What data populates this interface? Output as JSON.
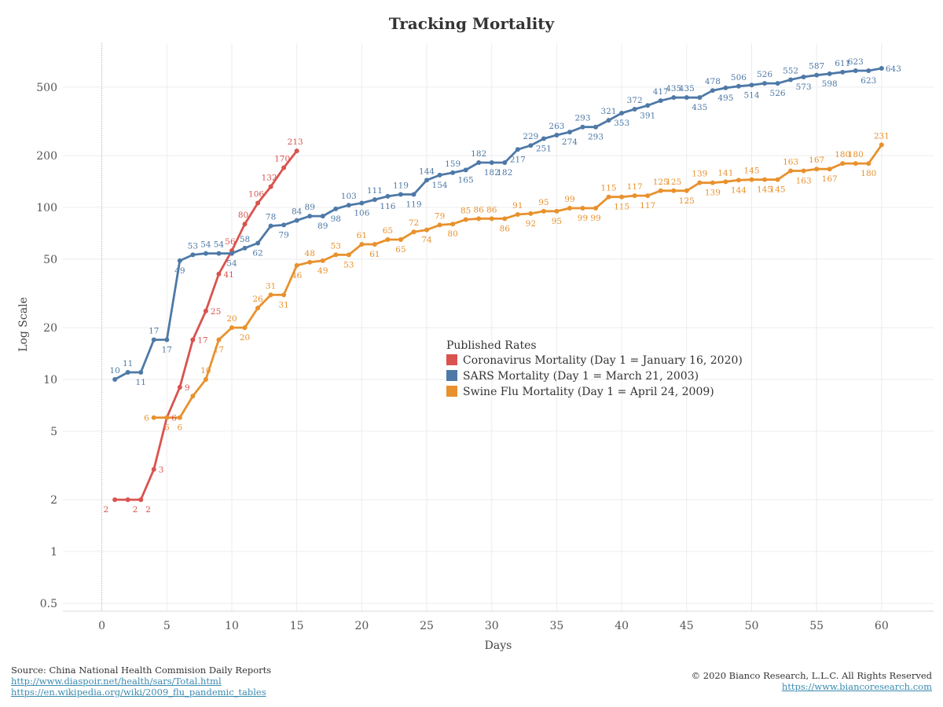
{
  "chart_data": {
    "type": "line",
    "title": "Tracking Mortality",
    "xlabel": "Days",
    "ylabel": "Log Scale",
    "y_scale": "log",
    "xlim": [
      -3,
      64
    ],
    "ylim": [
      0.45,
      900
    ],
    "x_ticks": [
      0,
      5,
      10,
      15,
      20,
      25,
      30,
      35,
      40,
      45,
      50,
      55,
      60
    ],
    "y_ticks": [
      0.5,
      1,
      2,
      5,
      10,
      20,
      50,
      100,
      200,
      500
    ],
    "grid": true,
    "legend": {
      "title": "Published Rates",
      "placement": "center"
    },
    "series": [
      {
        "name": "Coronavirus Mortality (Day 1 = January 16, 2020)",
        "color": "#d9534f",
        "x": [
          1,
          2,
          3,
          4,
          5,
          6,
          7,
          8,
          9,
          10,
          11,
          12,
          13,
          14,
          15
        ],
        "y": [
          2,
          2,
          2,
          3,
          6,
          9,
          17,
          25,
          41,
          56,
          80,
          106,
          132,
          170,
          213
        ],
        "labels": [
          "2",
          "2",
          "2",
          "3",
          "6",
          "9",
          "17",
          "25",
          "41",
          "56",
          "80",
          "106",
          "132",
          "170",
          "213"
        ]
      },
      {
        "name": "SARS Mortality  (Day 1 = March 21, 2003)",
        "color": "#4e79a7",
        "x": [
          1,
          2,
          3,
          4,
          5,
          6,
          7,
          8,
          9,
          10,
          11,
          12,
          13,
          14,
          15,
          16,
          17,
          18,
          19,
          20,
          21,
          22,
          23,
          24,
          25,
          26,
          27,
          28,
          29,
          30,
          31,
          32,
          33,
          34,
          35,
          36,
          37,
          38,
          39,
          40,
          41,
          42,
          43,
          44,
          45,
          46,
          47,
          48,
          49,
          50,
          51,
          52,
          53,
          54,
          55,
          56,
          57,
          58,
          59,
          60
        ],
        "y": [
          10,
          11,
          11,
          17,
          17,
          49,
          53,
          54,
          54,
          54,
          58,
          62,
          78,
          79,
          84,
          89,
          89,
          98,
          103,
          106,
          111,
          116,
          119,
          119,
          144,
          154,
          159,
          165,
          182,
          182,
          182,
          217,
          229,
          251,
          263,
          274,
          293,
          293,
          321,
          353,
          372,
          391,
          417,
          435,
          435,
          435,
          478,
          495,
          506,
          514,
          526,
          526,
          552,
          573,
          587,
          598,
          611,
          623,
          623,
          643
        ],
        "labels": [
          "10",
          "11",
          "11",
          "17",
          "17",
          "49",
          "53",
          "54",
          "54",
          "54",
          "58",
          "62",
          "78",
          "79",
          "84",
          "89",
          "89",
          "98",
          "103",
          "106",
          "111",
          "116",
          "119",
          "119",
          "144",
          "154",
          "159",
          "165",
          "182",
          "182",
          "182",
          "217",
          "229",
          "251",
          "263",
          "274",
          "293",
          "293",
          "321",
          "353",
          "372",
          "391",
          "417",
          "435",
          "435",
          "435",
          "478",
          "495",
          "506",
          "514",
          "526",
          "526",
          "552",
          "573",
          "587",
          "598",
          "611",
          "623",
          "623",
          "643"
        ]
      },
      {
        "name": "Swine Flu Mortality  (Day 1 = April 24, 2009)",
        "color": "#e8912d",
        "x": [
          4,
          5,
          6,
          7,
          8,
          9,
          10,
          11,
          12,
          13,
          14,
          15,
          16,
          17,
          18,
          19,
          20,
          21,
          22,
          23,
          24,
          25,
          26,
          27,
          28,
          29,
          30,
          31,
          32,
          33,
          34,
          35,
          36,
          37,
          38,
          39,
          40,
          41,
          42,
          43,
          44,
          45,
          46,
          47,
          48,
          49,
          50,
          51,
          52,
          53,
          54,
          55,
          56,
          57,
          58,
          59,
          60
        ],
        "y": [
          6,
          6,
          6,
          8,
          10,
          17,
          20,
          20,
          26,
          31,
          31,
          46,
          48,
          49,
          53,
          53,
          61,
          61,
          65,
          65,
          72,
          74,
          79,
          80,
          85,
          86,
          86,
          86,
          91,
          92,
          95,
          95,
          99,
          99,
          99,
          115,
          115,
          117,
          117,
          125,
          125,
          125,
          139,
          139,
          141,
          144,
          145,
          145,
          145,
          163,
          163,
          167,
          167,
          180,
          180,
          180,
          231
        ],
        "labels": [
          "6",
          "6",
          "6",
          "",
          "10",
          "17",
          "20",
          "20",
          "26",
          "31",
          "31",
          "46",
          "48",
          "49",
          "53",
          "53",
          "61",
          "61",
          "65",
          "65",
          "72",
          "74",
          "79",
          "80",
          "85",
          "86",
          "86",
          "86",
          "91",
          "92",
          "95",
          "95",
          "99",
          "99",
          "99",
          "115",
          "115",
          "117",
          "117",
          "125",
          "125",
          "125",
          "139",
          "139",
          "141",
          "144",
          "145",
          "145",
          "145",
          "163",
          "163",
          "167",
          "167",
          "180",
          "180",
          "180",
          "231"
        ]
      }
    ]
  },
  "footer": {
    "source": "Source: China National Health Commision Daily Reports",
    "link1": "http://www.diaspoir.net/health/sars/Total.html",
    "link2": "https://en.wikipedia.org/wiki/2009_flu_pandemic_tables",
    "copyright": "© 2020 Bianco Research, L.L.C. All Rights Reserved",
    "site": "https://www.biancoresearch.com"
  }
}
